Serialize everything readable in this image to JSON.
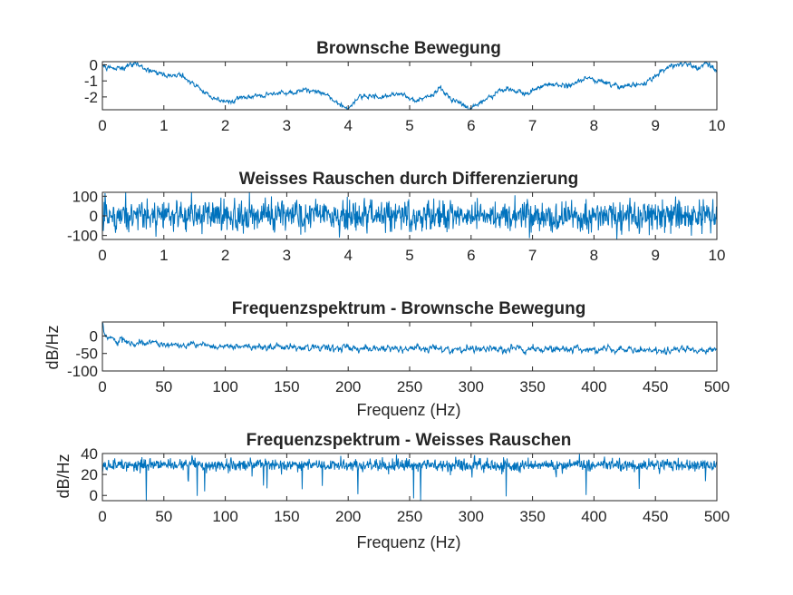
{
  "figure": {
    "background": "#ffffff",
    "line_color": "#0072bd",
    "axis_color": "#262626"
  },
  "chart_data": [
    {
      "type": "line",
      "title": "Brownsche Bewegung",
      "xlabel": "",
      "ylabel": "",
      "xlim": [
        0,
        10
      ],
      "ylim": [
        -2.8,
        0.2
      ],
      "xticks": [
        "0",
        "1",
        "2",
        "3",
        "4",
        "5",
        "6",
        "7",
        "8",
        "9",
        "10"
      ],
      "yticks": [
        "0",
        "-1",
        "-2"
      ],
      "grid": false,
      "noise": 0.07,
      "trend": [
        [
          0,
          -0.05
        ],
        [
          0.3,
          -0.2
        ],
        [
          0.55,
          0.05
        ],
        [
          0.75,
          -0.3
        ],
        [
          1.0,
          -0.6
        ],
        [
          1.3,
          -0.65
        ],
        [
          1.5,
          -1.2
        ],
        [
          1.75,
          -2.0
        ],
        [
          2.0,
          -2.3
        ],
        [
          2.3,
          -2.1
        ],
        [
          2.6,
          -1.9
        ],
        [
          3.0,
          -1.75
        ],
        [
          3.4,
          -1.5
        ],
        [
          3.7,
          -2.0
        ],
        [
          4.0,
          -2.75
        ],
        [
          4.2,
          -1.9
        ],
        [
          4.5,
          -2.0
        ],
        [
          4.8,
          -1.8
        ],
        [
          5.1,
          -2.2
        ],
        [
          5.3,
          -2.0
        ],
        [
          5.5,
          -1.5
        ],
        [
          5.7,
          -2.2
        ],
        [
          6.0,
          -2.75
        ],
        [
          6.3,
          -2.0
        ],
        [
          6.6,
          -1.5
        ],
        [
          6.9,
          -1.8
        ],
        [
          7.2,
          -1.2
        ],
        [
          7.6,
          -1.3
        ],
        [
          7.9,
          -0.8
        ],
        [
          8.2,
          -1.2
        ],
        [
          8.5,
          -1.4
        ],
        [
          8.8,
          -1.2
        ],
        [
          9.1,
          -0.4
        ],
        [
          9.3,
          -0.05
        ],
        [
          9.5,
          0.15
        ],
        [
          9.7,
          -0.2
        ],
        [
          9.85,
          0.05
        ],
        [
          10,
          -0.4
        ]
      ]
    },
    {
      "type": "line",
      "title": "Weisses Rauschen durch Differenzierung",
      "xlabel": "",
      "ylabel": "",
      "xlim": [
        0,
        10
      ],
      "ylim": [
        -120,
        120
      ],
      "xticks": [
        "0",
        "1",
        "2",
        "3",
        "4",
        "5",
        "6",
        "7",
        "8",
        "9",
        "10"
      ],
      "yticks": [
        "100",
        "0",
        "-100"
      ],
      "grid": false,
      "noise": 40,
      "mean": 0
    },
    {
      "type": "line",
      "title": "Frequenzspektrum - Brownsche Bewegung",
      "xlabel": "Frequenz (Hz)",
      "ylabel": "dB/Hz",
      "xlim": [
        0,
        500
      ],
      "ylim": [
        -100,
        40
      ],
      "xticks": [
        "0",
        "50",
        "100",
        "150",
        "200",
        "250",
        "300",
        "350",
        "400",
        "450",
        "500"
      ],
      "yticks": [
        "0",
        "-50",
        "-100"
      ],
      "grid": false,
      "noise": 4,
      "trend": [
        [
          0,
          25
        ],
        [
          2,
          5
        ],
        [
          10,
          -10
        ],
        [
          30,
          -20
        ],
        [
          60,
          -25
        ],
        [
          100,
          -30
        ],
        [
          200,
          -35
        ],
        [
          300,
          -37
        ],
        [
          400,
          -38
        ],
        [
          500,
          -40
        ]
      ]
    },
    {
      "type": "line",
      "title": "Frequenzspektrum - Weisses Rauschen",
      "xlabel": "Frequenz (Hz)",
      "ylabel": "dB/Hz",
      "xlim": [
        0,
        500
      ],
      "ylim": [
        -5,
        40
      ],
      "xticks": [
        "0",
        "50",
        "100",
        "150",
        "200",
        "250",
        "300",
        "350",
        "400",
        "450",
        "500"
      ],
      "yticks": [
        "40",
        "20",
        "0"
      ],
      "grid": false,
      "noise": 3,
      "mean": 29
    }
  ]
}
